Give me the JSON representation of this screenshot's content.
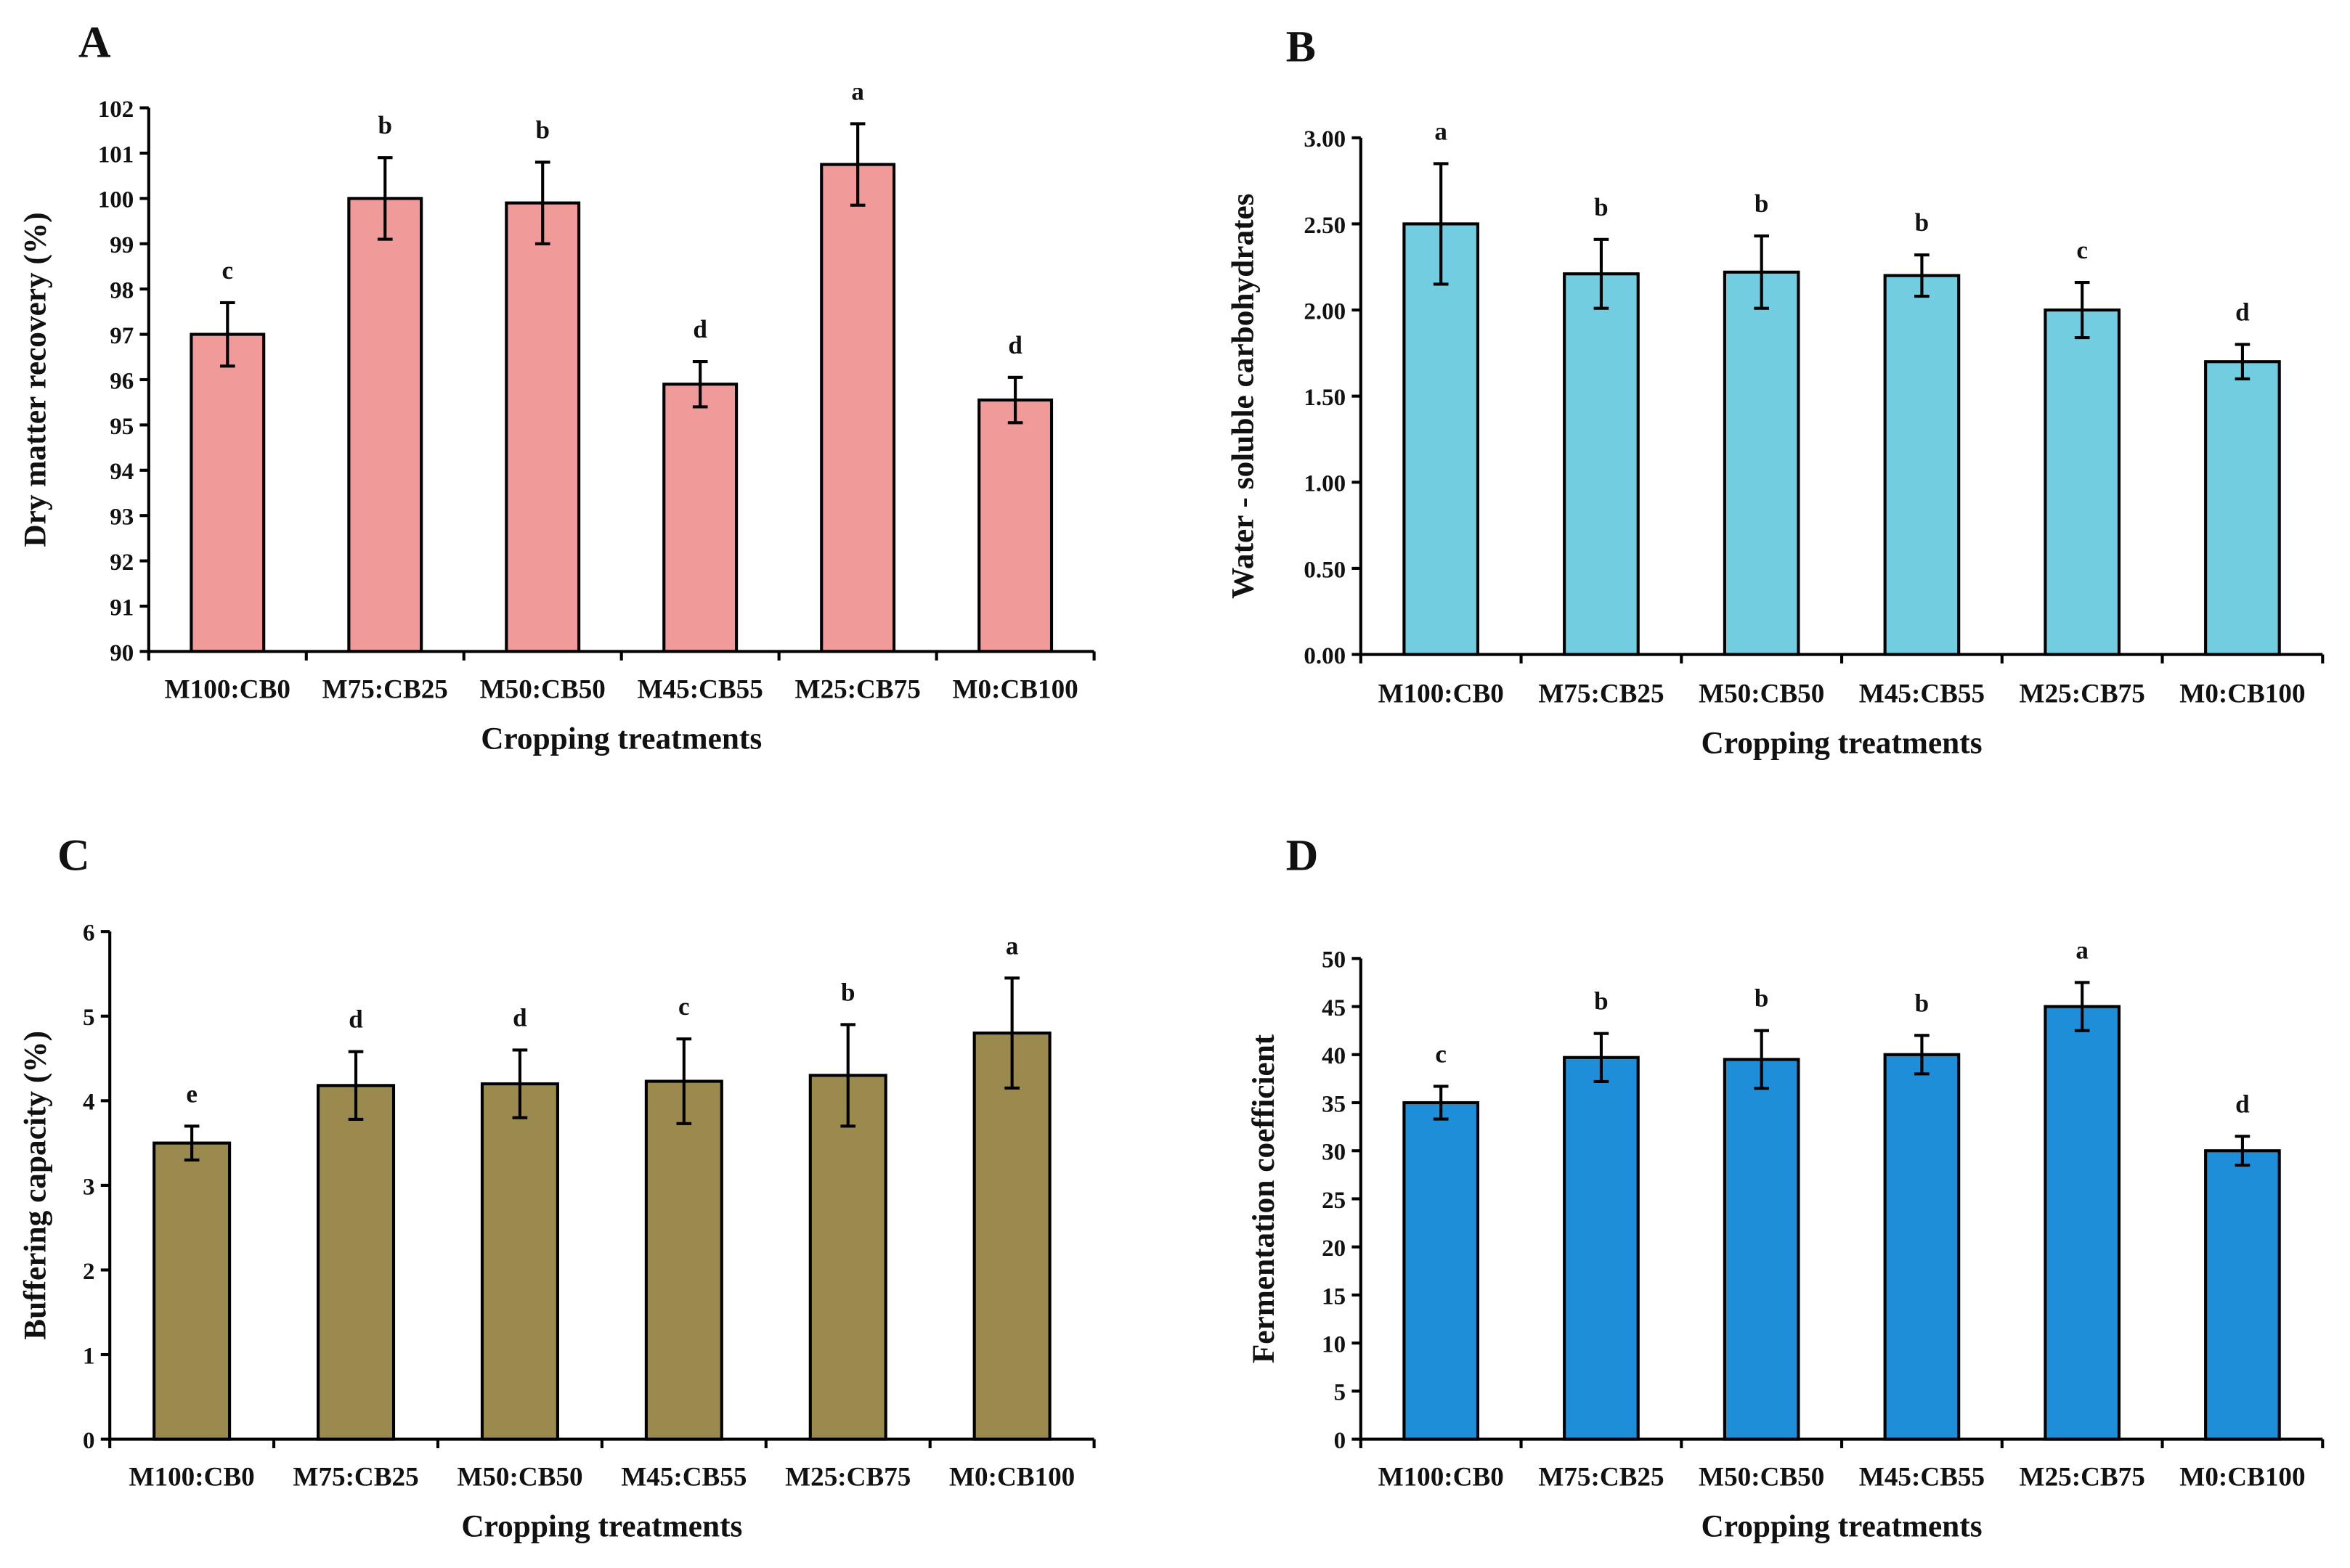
{
  "chart_data": [
    {
      "panel": "A",
      "type": "bar",
      "title": "",
      "xlabel": "Cropping treatments",
      "ylabel": "Dry matter recovery (%)",
      "categories": [
        "M100:CB0",
        "M75:CB25",
        "M50:CB50",
        "M45:CB55",
        "M25:CB75",
        "M0:CB100"
      ],
      "values": [
        97.0,
        100.0,
        99.9,
        95.9,
        100.75,
        95.55
      ],
      "errors": [
        0.7,
        0.9,
        0.9,
        0.5,
        0.9,
        0.5
      ],
      "letters": [
        "c",
        "b",
        "b",
        "d",
        "a",
        "d"
      ],
      "ylim": [
        90,
        102
      ],
      "yticks": [
        "90",
        "91",
        "92",
        "93",
        "94",
        "95",
        "96",
        "97",
        "98",
        "99",
        "100",
        "101",
        "102"
      ],
      "color": "#f09a9a",
      "grid": false
    },
    {
      "panel": "B",
      "type": "bar",
      "title": "",
      "xlabel": "Cropping treatments",
      "ylabel": "Water - soluble carbohydrates",
      "categories": [
        "M100:CB0",
        "M75:CB25",
        "M50:CB50",
        "M45:CB55",
        "M25:CB75",
        "M0:CB100"
      ],
      "values": [
        2.5,
        2.21,
        2.22,
        2.2,
        2.0,
        1.7
      ],
      "errors": [
        0.35,
        0.2,
        0.21,
        0.12,
        0.16,
        0.1
      ],
      "letters": [
        "a",
        "b",
        "b",
        "b",
        "c",
        "d"
      ],
      "ylim": [
        0,
        3
      ],
      "yticks": [
        "0.00",
        "0.50",
        "1.00",
        "1.50",
        "2.00",
        "2.50",
        "3.00"
      ],
      "color": "#72cde0",
      "grid": false
    },
    {
      "panel": "C",
      "type": "bar",
      "title": "",
      "xlabel": "Cropping treatments",
      "ylabel": "Buffering capacity (%)",
      "categories": [
        "M100:CB0",
        "M75:CB25",
        "M50:CB50",
        "M45:CB55",
        "M25:CB75",
        "M0:CB100"
      ],
      "values": [
        3.5,
        4.18,
        4.2,
        4.23,
        4.3,
        4.8
      ],
      "errors": [
        0.2,
        0.4,
        0.4,
        0.5,
        0.6,
        0.65
      ],
      "letters": [
        "e",
        "d",
        "d",
        "c",
        "b",
        "a"
      ],
      "ylim": [
        0,
        6
      ],
      "yticks": [
        "0",
        "1",
        "2",
        "3",
        "4",
        "5",
        "6"
      ],
      "color": "#9a8a4e",
      "grid": false
    },
    {
      "panel": "D",
      "type": "bar",
      "title": "",
      "xlabel": "Cropping treatments",
      "ylabel": "Fermentation coefficient",
      "categories": [
        "M100:CB0",
        "M75:CB25",
        "M50:CB50",
        "M45:CB55",
        "M25:CB75",
        "M0:CB100"
      ],
      "values": [
        35,
        39.7,
        39.5,
        40,
        45,
        30
      ],
      "errors": [
        1.7,
        2.5,
        3.0,
        2.0,
        2.5,
        1.5
      ],
      "letters": [
        "c",
        "b",
        "b",
        "b",
        "a",
        "d"
      ],
      "ylim": [
        0,
        50
      ],
      "yticks": [
        "0",
        "5",
        "10",
        "15",
        "20",
        "25",
        "30",
        "35",
        "40",
        "45",
        "50"
      ],
      "color": "#1e8ed8",
      "grid": false
    }
  ]
}
